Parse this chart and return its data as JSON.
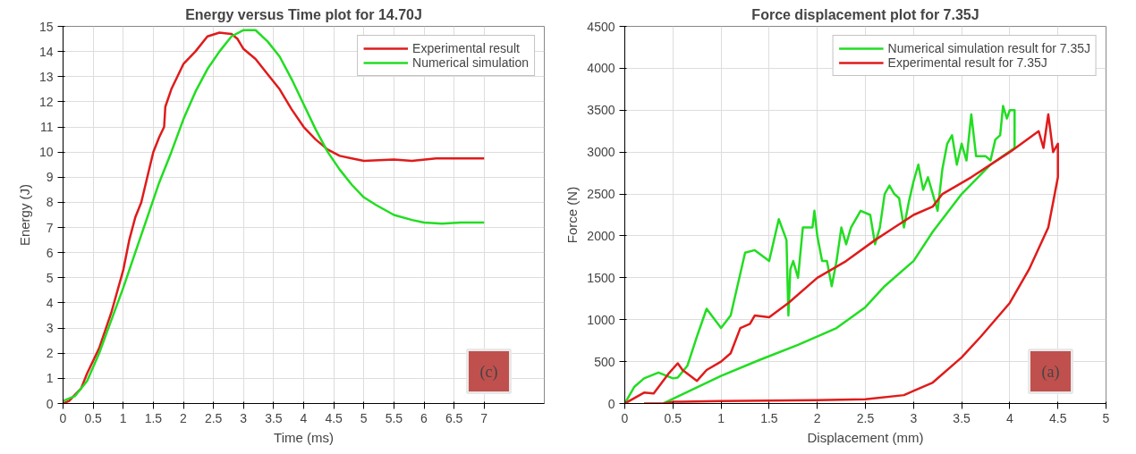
{
  "chart_data": [
    {
      "type": "line",
      "title": "Energy versus Time plot for 14.70J",
      "xlabel": "Time (ms)",
      "ylabel": "Energy (J)",
      "xlim": [
        0,
        8
      ],
      "xticks": [
        0,
        0.5,
        1,
        1.5,
        2,
        2.5,
        3,
        3.5,
        4,
        4.5,
        5,
        5.5,
        6,
        6.5,
        7
      ],
      "ylim": [
        0,
        15
      ],
      "yticks": [
        0,
        1,
        2,
        3,
        4,
        5,
        6,
        7,
        8,
        9,
        10,
        11,
        12,
        13,
        14,
        15
      ],
      "grid": true,
      "legend": "top right",
      "annotations": [
        "(c)"
      ],
      "series": [
        {
          "name": "Experimental result",
          "color": "#e01b1b",
          "x": [
            0,
            0.1,
            0.3,
            0.4,
            0.6,
            0.8,
            1.0,
            1.1,
            1.2,
            1.3,
            1.4,
            1.5,
            1.6,
            1.68,
            1.7,
            1.8,
            1.9,
            2.0,
            2.2,
            2.4,
            2.6,
            2.8,
            2.9,
            3.0,
            3.2,
            3.4,
            3.6,
            3.8,
            4.0,
            4.2,
            4.4,
            4.6,
            4.8,
            5.0,
            5.5,
            5.8,
            6.2,
            6.6,
            7.0
          ],
          "values": [
            0,
            0.1,
            0.6,
            1.2,
            2.2,
            3.6,
            5.3,
            6.5,
            7.4,
            8.0,
            9.0,
            10.0,
            10.6,
            11.0,
            11.8,
            12.5,
            13.0,
            13.5,
            14.0,
            14.6,
            14.75,
            14.7,
            14.5,
            14.1,
            13.7,
            13.1,
            12.5,
            11.7,
            11.0,
            10.5,
            10.1,
            9.85,
            9.75,
            9.65,
            9.7,
            9.65,
            9.75,
            9.75,
            9.75
          ]
        },
        {
          "name": "Numerical simulation",
          "color": "#22dd22",
          "x": [
            0,
            0.2,
            0.4,
            0.6,
            0.8,
            1.0,
            1.2,
            1.4,
            1.6,
            1.8,
            2.0,
            2.2,
            2.4,
            2.6,
            2.8,
            3.0,
            3.2,
            3.4,
            3.6,
            3.8,
            4.0,
            4.2,
            4.4,
            4.6,
            4.8,
            5.0,
            5.2,
            5.5,
            5.8,
            6.0,
            6.3,
            6.6,
            7.0
          ],
          "values": [
            0.1,
            0.3,
            0.9,
            2.0,
            3.3,
            4.6,
            6.0,
            7.4,
            8.8,
            10.0,
            11.3,
            12.4,
            13.3,
            14.0,
            14.6,
            14.85,
            14.85,
            14.4,
            13.8,
            12.9,
            11.9,
            10.9,
            10.0,
            9.3,
            8.7,
            8.2,
            7.9,
            7.5,
            7.3,
            7.2,
            7.15,
            7.2,
            7.2
          ]
        }
      ]
    },
    {
      "type": "line",
      "title": "Force displacement plot for 7.35J",
      "xlabel": "Displacement (mm)",
      "ylabel": "Force (N)",
      "xlim": [
        0,
        5
      ],
      "xticks": [
        0,
        0.5,
        1,
        1.5,
        2,
        2.5,
        3,
        3.5,
        4,
        4.5,
        5
      ],
      "ylim": [
        0,
        4500
      ],
      "yticks": [
        0,
        500,
        1000,
        1500,
        2000,
        2500,
        3000,
        3500,
        4000,
        4500
      ],
      "grid": true,
      "legend": "top right",
      "annotations": [
        "(a)"
      ],
      "series": [
        {
          "name": "Numerical simulation result for 7.35J",
          "color": "#22dd22",
          "x": [
            0,
            0.1,
            0.2,
            0.35,
            0.5,
            0.55,
            0.65,
            0.75,
            0.85,
            1.0,
            1.1,
            1.25,
            1.35,
            1.5,
            1.6,
            1.68,
            1.7,
            1.72,
            1.75,
            1.8,
            1.85,
            1.95,
            1.97,
            2.0,
            2.05,
            2.1,
            2.15,
            2.2,
            2.25,
            2.3,
            2.35,
            2.45,
            2.55,
            2.6,
            2.65,
            2.7,
            2.75,
            2.8,
            2.85,
            2.9,
            2.95,
            3.0,
            3.05,
            3.1,
            3.15,
            3.2,
            3.25,
            3.3,
            3.35,
            3.4,
            3.45,
            3.5,
            3.55,
            3.6,
            3.65,
            3.75,
            3.8,
            3.85,
            3.9,
            3.93,
            3.97,
            4.0,
            4.05,
            4.05,
            3.8,
            3.5,
            3.2,
            3.0,
            2.7,
            2.5,
            2.2,
            1.8,
            1.4,
            1.0,
            0.6,
            0.4
          ],
          "values": [
            0,
            200,
            300,
            370,
            300,
            310,
            450,
            800,
            1130,
            900,
            1050,
            1800,
            1830,
            1700,
            2200,
            1950,
            1050,
            1600,
            1700,
            1500,
            2100,
            2100,
            2300,
            2000,
            1700,
            1700,
            1400,
            1700,
            2100,
            1900,
            2100,
            2300,
            2250,
            1900,
            2100,
            2500,
            2600,
            2500,
            2450,
            2100,
            2400,
            2650,
            2850,
            2550,
            2700,
            2500,
            2300,
            2800,
            3100,
            3200,
            2850,
            3100,
            2900,
            3450,
            2950,
            2950,
            2900,
            3150,
            3200,
            3550,
            3400,
            3500,
            3500,
            3050,
            2850,
            2500,
            2050,
            1700,
            1400,
            1150,
            900,
            700,
            520,
            330,
            110,
            0
          ]
        },
        {
          "name": "Experimental result for 7.35J",
          "color": "#e01b1b",
          "x": [
            0,
            0.2,
            0.3,
            0.45,
            0.55,
            0.6,
            0.75,
            0.85,
            1.0,
            1.1,
            1.2,
            1.3,
            1.35,
            1.5,
            1.7,
            2.0,
            2.3,
            2.6,
            2.8,
            3.0,
            3.2,
            3.3,
            3.6,
            4.0,
            4.3,
            4.35,
            4.4,
            4.45,
            4.5,
            4.5,
            4.45,
            4.4,
            4.2,
            4.0,
            3.7,
            3.5,
            3.2,
            3.0,
            2.9,
            2.5,
            2.0,
            1.0,
            0.5,
            0.4,
            0.2
          ],
          "values": [
            0,
            130,
            120,
            350,
            480,
            400,
            270,
            400,
            500,
            600,
            900,
            950,
            1050,
            1030,
            1200,
            1500,
            1700,
            1950,
            2100,
            2250,
            2350,
            2500,
            2700,
            3000,
            3250,
            3050,
            3450,
            3000,
            3100,
            2700,
            2400,
            2100,
            1600,
            1200,
            800,
            550,
            250,
            150,
            100,
            50,
            40,
            30,
            20,
            0,
            0
          ]
        }
      ]
    }
  ]
}
